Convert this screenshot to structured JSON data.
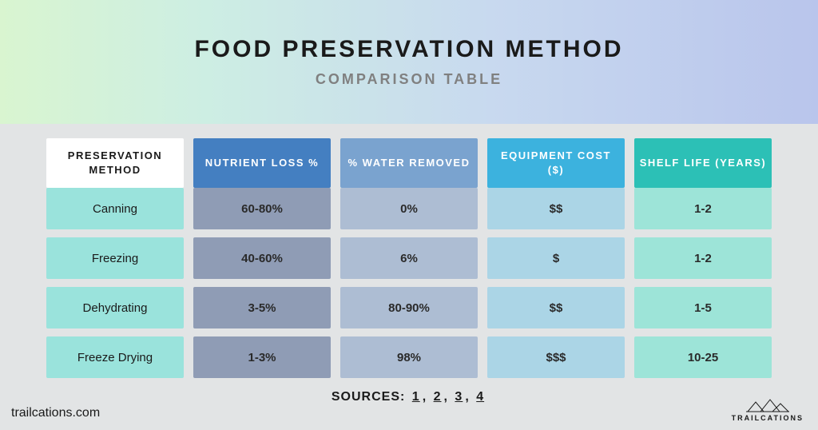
{
  "header": {
    "title": "FOOD PRESERVATION METHOD",
    "subtitle": "COMPARISON TABLE"
  },
  "table": {
    "type": "table",
    "header_bg_colors": [
      "#ffffff",
      "#447fc1",
      "#7aa3cf",
      "#3cb2de",
      "#2cc0b6"
    ],
    "row_label_bg": "#9ae3dc",
    "col_bg_colors": [
      "#8f9cb5",
      "#adbdd3",
      "#abd5e6",
      "#9de4d8"
    ],
    "columns": [
      "PRESERVATION METHOD",
      "NUTRIENT LOSS %",
      "% WATER REMOVED",
      "EQUIPMENT COST ($)",
      "SHELF LIFE (YEARS)"
    ],
    "rows": [
      {
        "label": "Canning",
        "values": [
          "60-80%",
          "0%",
          "$$",
          "1-2"
        ]
      },
      {
        "label": "Freezing",
        "values": [
          "40-60%",
          "6%",
          "$",
          "1-2"
        ]
      },
      {
        "label": "Dehydrating",
        "values": [
          "3-5%",
          "80-90%",
          "$$",
          "1-5"
        ]
      },
      {
        "label": "Freeze Drying",
        "values": [
          "1-3%",
          "98%",
          "$$$",
          "10-25"
        ]
      }
    ]
  },
  "sources": {
    "label": "SOURCES:",
    "links": [
      "1",
      "2",
      "3",
      "4"
    ]
  },
  "footer": {
    "url": "trailcations.com",
    "brand": "TRAILCATIONS"
  }
}
